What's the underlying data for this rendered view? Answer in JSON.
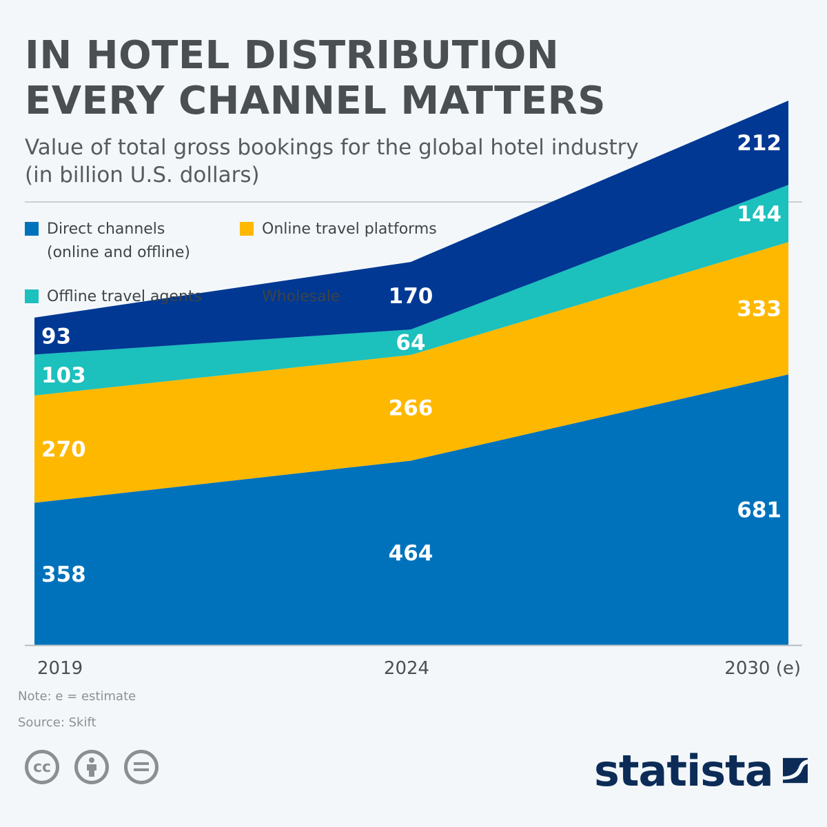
{
  "header": {
    "title_line1": "IN HOTEL DISTRIBUTION",
    "title_line2": "EVERY CHANNEL MATTERS",
    "subtitle_line1": "Value of total gross bookings for the global hotel industry",
    "subtitle_line2": "(in billion U.S. dollars)"
  },
  "legend": {
    "direct_line1": "Direct channels",
    "direct_line2": "(online and offline)",
    "online": "Online travel  platforms",
    "offline": "Offline travel agents",
    "wholesale": "Wholesale"
  },
  "chart_data": {
    "type": "area",
    "stacked": true,
    "categories": [
      "2019",
      "2024",
      "2030 (e)"
    ],
    "series": [
      {
        "name": "Direct channels (online and offline)",
        "values": [
          358,
          464,
          681
        ],
        "color": "#0072bc"
      },
      {
        "name": "Online travel  platforms",
        "values": [
          270,
          266,
          333
        ],
        "color": "#ffb800"
      },
      {
        "name": "Offline travel agents",
        "values": [
          103,
          64,
          144
        ],
        "color": "#1cc0bd"
      },
      {
        "name": "Wholesale",
        "values": [
          93,
          170,
          212
        ],
        "color": "#003893"
      }
    ],
    "ylim": [
      0,
      1370
    ],
    "data_labels": true,
    "grid": false,
    "legend_position": "top-left"
  },
  "footer": {
    "note": "Note: e = estimate",
    "source": "Source: Skift",
    "brand": "statista",
    "cc_icons": [
      "cc-icon",
      "by-person-icon",
      "nd-equals-icon"
    ]
  },
  "colors": {
    "background": "#f3f7fa",
    "title": "#4a4f52",
    "brand": "#0c2c57"
  }
}
